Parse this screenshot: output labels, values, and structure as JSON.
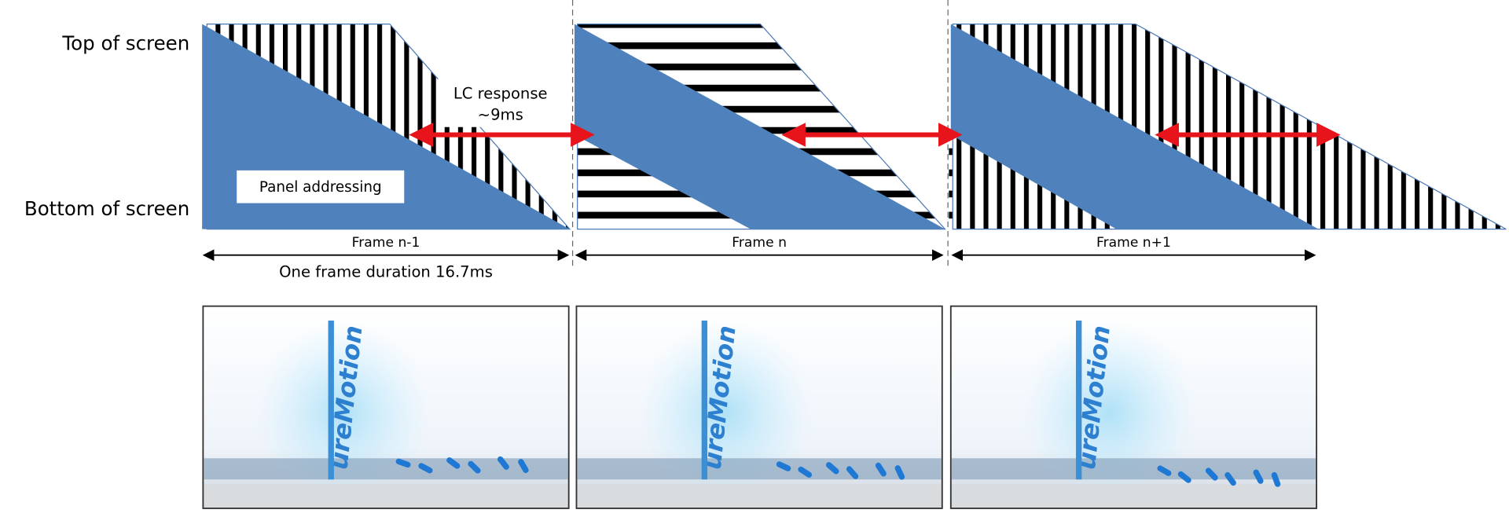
{
  "labels": {
    "top": "Top of screen",
    "bottom": "Bottom of screen"
  },
  "annotation": {
    "line1": "LC response",
    "line2": "~9ms"
  },
  "panel_label": "Panel addressing",
  "frames": [
    {
      "label": "Frame n-1",
      "screen_text": "ureMotion"
    },
    {
      "label": "Frame n",
      "screen_text": "ureMotion"
    },
    {
      "label": "Frame n+1",
      "screen_text": "ureMotion"
    }
  ],
  "duration_label": "One frame duration 16.7ms"
}
